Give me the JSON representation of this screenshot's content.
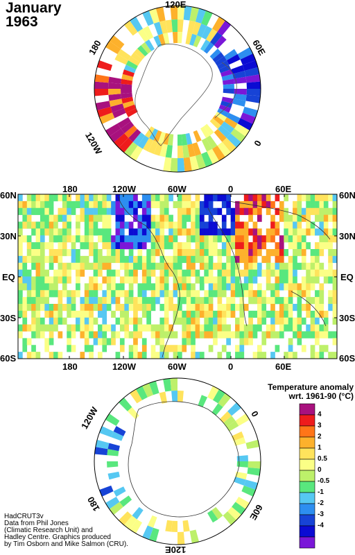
{
  "title": {
    "line1": "January",
    "line2": "1963"
  },
  "north_polar": {
    "labels": [
      "120E",
      "60E",
      "0",
      "120W",
      "180"
    ]
  },
  "main_map": {
    "top_lon_labels": [
      "180",
      "120W",
      "60W",
      "0",
      "60E"
    ],
    "bottom_lon_labels": [
      "180",
      "120W",
      "60W",
      "0",
      "60E"
    ],
    "left_lat_labels": [
      "60N",
      "30N",
      "EQ",
      "30S",
      "60S"
    ],
    "right_lat_labels": [
      "60N",
      "30N",
      "EQ",
      "30S",
      "60S"
    ]
  },
  "south_polar": {
    "labels": [
      "120E",
      "120W",
      "0",
      "180",
      "60E"
    ]
  },
  "legend": {
    "title_line1": "Temperature anomaly",
    "title_line2": "wrt. 1961-90  (°C)",
    "labels": [
      "4",
      "3",
      "2",
      "1",
      "0.5",
      "0",
      "-0.5",
      "-1",
      "-2",
      "-3",
      "-4"
    ],
    "colors": [
      "#a8117e",
      "#ee1c1c",
      "#ff7518",
      "#fdb12c",
      "#ffe35c",
      "#fbff86",
      "#bdf06a",
      "#59e77e",
      "#56c8f2",
      "#2d8ef0",
      "#1743d6",
      "#0b0bd3",
      "#7a17d8"
    ]
  },
  "credits": {
    "line1": "HadCRUT3v",
    "line2": "Data from Phil Jones",
    "line3": "(Climatic Research Unit) and",
    "line4": "Hadley Centre.  Graphics produced",
    "line5": "by Tim Osborn and Mike Salmon (CRU)."
  }
}
